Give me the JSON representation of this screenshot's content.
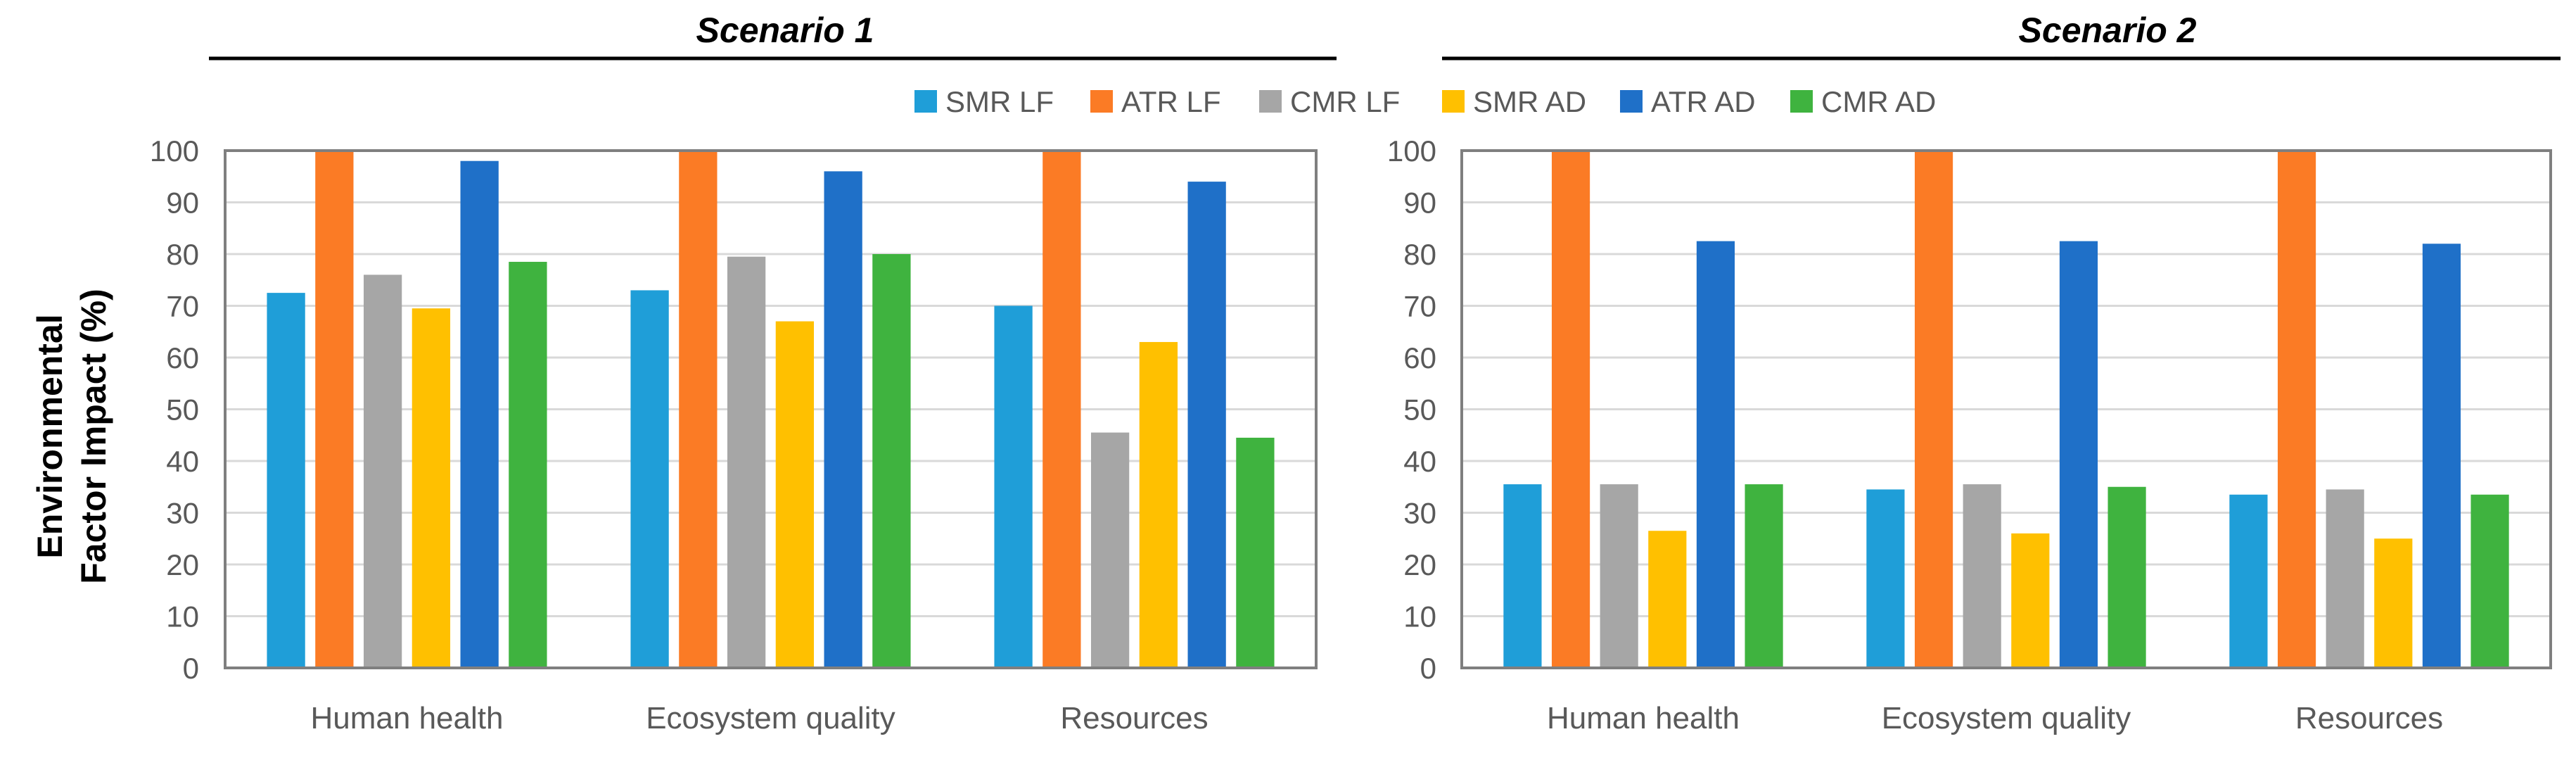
{
  "y_axis_label": [
    "Environmental",
    "Factor Impact (%)"
  ],
  "legend": [
    {
      "name": "SMR LF",
      "color": "#1f9ed8"
    },
    {
      "name": "ATR LF",
      "color": "#fb7b25"
    },
    {
      "name": "CMR LF",
      "color": "#a6a6a6"
    },
    {
      "name": "SMR AD",
      "color": "#ffc000"
    },
    {
      "name": "ATR AD",
      "color": "#1f70c8"
    },
    {
      "name": "CMR AD",
      "color": "#3fb33f"
    }
  ],
  "chart_data": [
    {
      "type": "bar",
      "title": "Scenario 1",
      "categories": [
        "Human health",
        "Ecosystem quality",
        "Resources"
      ],
      "ylabel": "Environmental Factor Impact (%)",
      "ylim": [
        0,
        100
      ],
      "yticks": [
        0,
        10,
        20,
        30,
        40,
        50,
        60,
        70,
        80,
        90,
        100
      ],
      "grid": true,
      "series": [
        {
          "name": "SMR LF",
          "values": [
            72.5,
            73,
            70
          ]
        },
        {
          "name": "ATR LF",
          "values": [
            100,
            100,
            100
          ]
        },
        {
          "name": "CMR LF",
          "values": [
            76,
            79.5,
            45.5
          ]
        },
        {
          "name": "SMR AD",
          "values": [
            69.5,
            67,
            63
          ]
        },
        {
          "name": "ATR AD",
          "values": [
            98,
            96,
            94
          ]
        },
        {
          "name": "CMR AD",
          "values": [
            78.5,
            80,
            44.5
          ]
        }
      ]
    },
    {
      "type": "bar",
      "title": "Scenario 2",
      "categories": [
        "Human health",
        "Ecosystem quality",
        "Resources"
      ],
      "ylabel": "Environmental Factor Impact (%)",
      "ylim": [
        0,
        100
      ],
      "yticks": [
        0,
        10,
        20,
        30,
        40,
        50,
        60,
        70,
        80,
        90,
        100
      ],
      "grid": true,
      "series": [
        {
          "name": "SMR LF",
          "values": [
            35.5,
            34.5,
            33.5
          ]
        },
        {
          "name": "ATR LF",
          "values": [
            100,
            100,
            100
          ]
        },
        {
          "name": "CMR LF",
          "values": [
            35.5,
            35.5,
            34.5
          ]
        },
        {
          "name": "SMR AD",
          "values": [
            26.5,
            26,
            25
          ]
        },
        {
          "name": "ATR AD",
          "values": [
            82.5,
            82.5,
            82
          ]
        },
        {
          "name": "CMR AD",
          "values": [
            35.5,
            35,
            33.5
          ]
        }
      ]
    }
  ]
}
